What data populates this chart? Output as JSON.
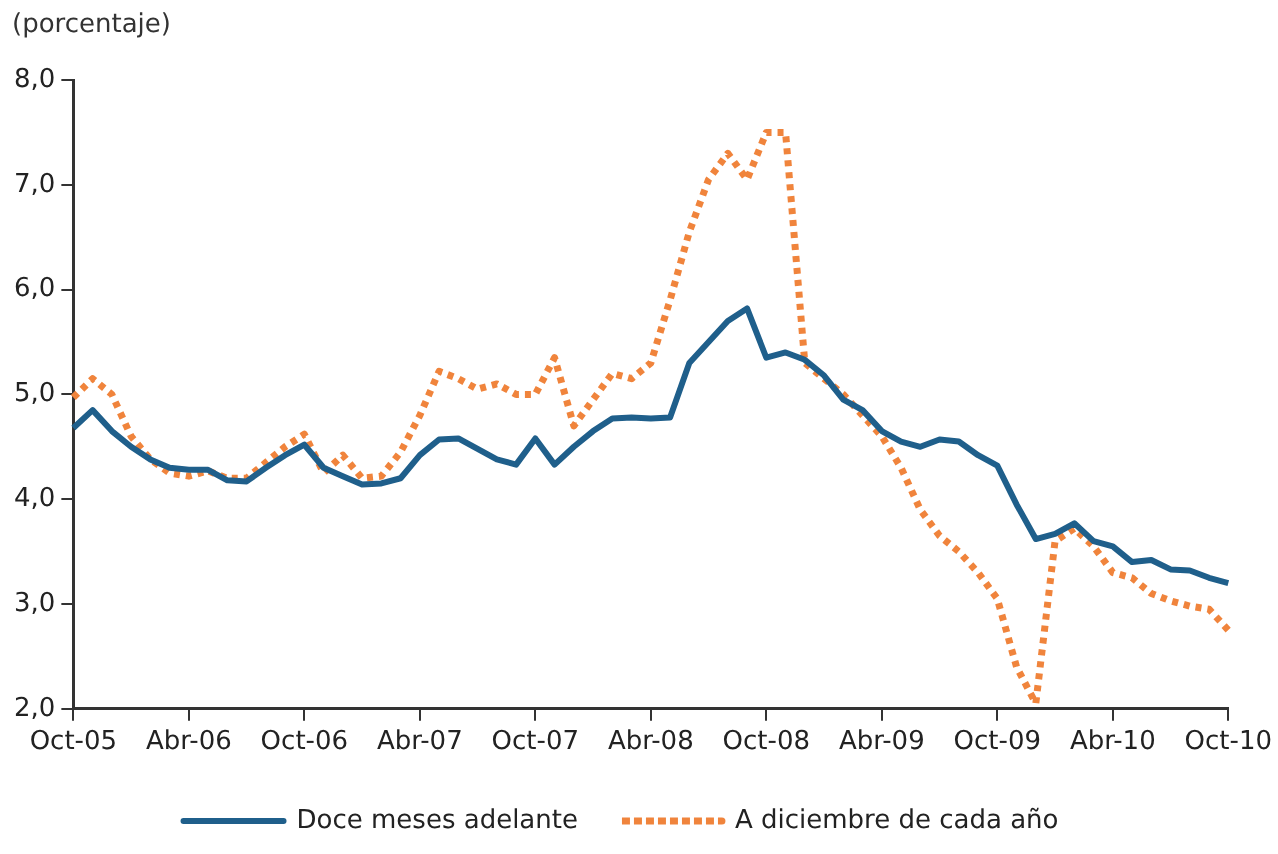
{
  "chart_data": {
    "type": "line",
    "ylabel": "(porcentaje)",
    "categories": [
      "Oct-05",
      null,
      null,
      null,
      null,
      null,
      "Abr-06",
      null,
      null,
      null,
      null,
      null,
      "Oct-06",
      null,
      null,
      null,
      null,
      null,
      "Abr-07",
      null,
      null,
      null,
      null,
      null,
      "Oct-07",
      null,
      null,
      null,
      null,
      null,
      "Abr-08",
      null,
      null,
      null,
      null,
      null,
      "Oct-08",
      null,
      null,
      null,
      null,
      null,
      "Abr-09",
      null,
      null,
      null,
      null,
      null,
      "Oct-09",
      null,
      null,
      null,
      null,
      null,
      "Abr-10",
      null,
      null,
      null,
      null,
      null,
      "Oct-10"
    ],
    "series": [
      {
        "name": "Doce meses adelante",
        "color": "#1f5f8b",
        "line_style": "solid",
        "values": [
          4.68,
          4.85,
          4.65,
          4.5,
          4.38,
          4.3,
          4.28,
          4.28,
          4.18,
          4.17,
          4.3,
          4.42,
          4.52,
          4.3,
          4.22,
          4.14,
          4.15,
          4.2,
          4.42,
          4.57,
          4.58,
          4.48,
          4.38,
          4.33,
          4.58,
          4.33,
          4.5,
          4.65,
          4.77,
          4.78,
          4.77,
          4.78,
          5.3,
          5.5,
          5.7,
          5.82,
          5.35,
          5.4,
          5.33,
          5.18,
          4.95,
          4.85,
          4.65,
          4.55,
          4.5,
          4.57,
          4.55,
          4.42,
          4.32,
          3.95,
          3.62,
          3.67,
          3.77,
          3.6,
          3.55,
          3.4,
          3.42,
          3.33,
          3.32,
          3.25,
          3.2
        ]
      },
      {
        "name": "A diciembre de cada año",
        "color": "#f0843c",
        "line_style": "dotted",
        "values": [
          4.97,
          5.15,
          5.0,
          4.6,
          4.38,
          4.25,
          4.22,
          4.27,
          4.2,
          4.2,
          4.35,
          4.5,
          4.62,
          4.25,
          4.42,
          4.2,
          4.22,
          4.45,
          4.8,
          5.22,
          5.15,
          5.05,
          5.1,
          5.0,
          5.0,
          5.35,
          4.7,
          4.95,
          5.2,
          5.15,
          5.3,
          5.9,
          6.55,
          7.05,
          7.3,
          7.05,
          7.5,
          7.5,
          5.3,
          5.15,
          5.0,
          4.8,
          4.6,
          4.3,
          3.9,
          3.65,
          3.5,
          3.3,
          3.05,
          2.4,
          2.05,
          3.6,
          3.72,
          3.55,
          3.3,
          3.25,
          3.1,
          3.03,
          2.98,
          2.95,
          2.75
        ]
      }
    ],
    "ylim": [
      2,
      8
    ],
    "yticks": [
      {
        "value": 2,
        "label": "2,0"
      },
      {
        "value": 3,
        "label": "3,0"
      },
      {
        "value": 4,
        "label": "4,0"
      },
      {
        "value": 5,
        "label": "5,0"
      },
      {
        "value": 6,
        "label": "6,0"
      },
      {
        "value": 7,
        "label": "7,0"
      },
      {
        "value": 8,
        "label": "8,0"
      }
    ],
    "grid": false,
    "legend": "bottom",
    "marker": "none"
  }
}
